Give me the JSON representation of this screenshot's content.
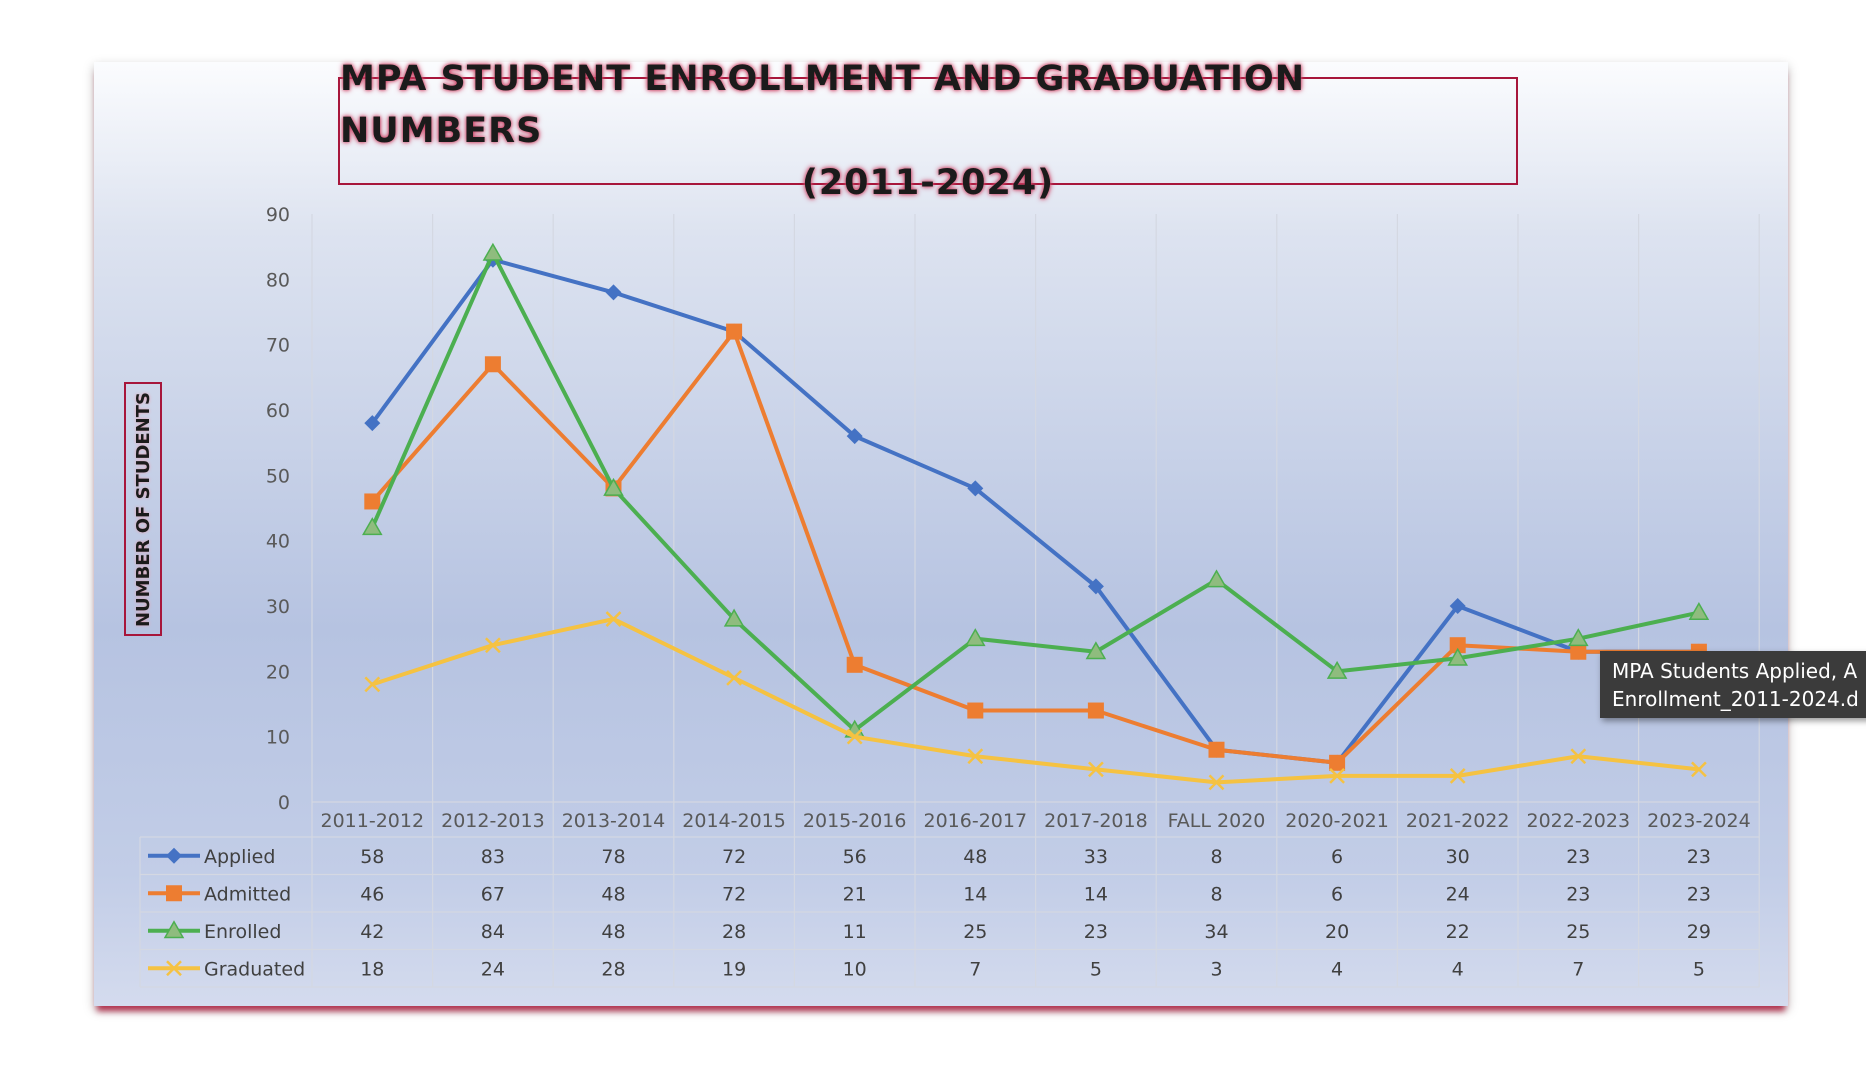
{
  "chart_data": {
    "type": "line",
    "title": "MPA STUDENT ENROLLMENT AND GRADUATION NUMBERS",
    "title_years": "(2011-2024)",
    "ylabel": "NUMBER OF STUDENTS",
    "ylim": [
      0,
      90
    ],
    "ytick_step": 10,
    "yticks": [
      "0",
      "10",
      "20",
      "30",
      "40",
      "50",
      "60",
      "70",
      "80",
      "90"
    ],
    "grid": true,
    "legend": "data-table-below",
    "categories": [
      "2011-2012",
      "2012-2013",
      "2013-2014",
      "2014-2015",
      "2015-2016",
      "2016-2017",
      "2017-2018",
      "FALL 2020",
      "2020-2021",
      "2021-2022",
      "2022-2023",
      "2023-2024"
    ],
    "series": [
      {
        "name": "Applied",
        "color": "#4472c4",
        "marker": "diamond",
        "values": [
          58,
          83,
          78,
          72,
          56,
          48,
          33,
          8,
          6,
          30,
          23,
          23
        ]
      },
      {
        "name": "Admitted",
        "color": "#ed7d31",
        "marker": "square",
        "values": [
          46,
          67,
          48,
          72,
          21,
          14,
          14,
          8,
          6,
          24,
          23,
          23
        ]
      },
      {
        "name": "Enrolled",
        "color": "#4caf50",
        "marker_fill": "#8fbc7e",
        "marker": "triangle",
        "values": [
          42,
          84,
          48,
          28,
          11,
          25,
          23,
          34,
          20,
          22,
          25,
          29
        ]
      },
      {
        "name": "Graduated",
        "color": "#f5c242",
        "marker": "x",
        "values": [
          18,
          24,
          28,
          19,
          10,
          7,
          5,
          3,
          4,
          4,
          7,
          5
        ]
      }
    ]
  },
  "tooltip": {
    "line1": "MPA Students Applied, A",
    "line2": "Enrollment_2011-2024.d"
  }
}
